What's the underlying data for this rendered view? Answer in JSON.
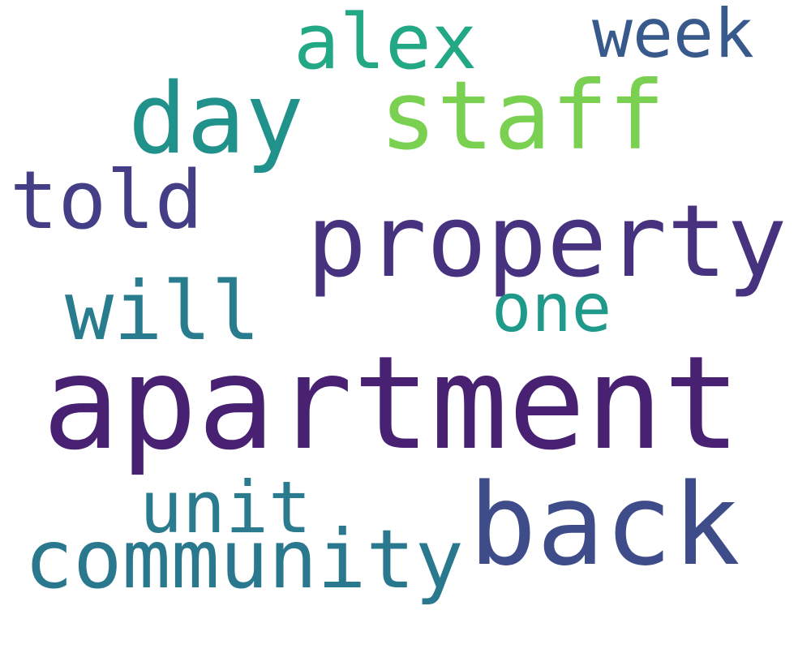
{
  "word_cloud": {
    "background": "#ffffff",
    "words": [
      {
        "text": "apartment",
        "color": "#482173"
      },
      {
        "text": "property",
        "color": "#46327e"
      },
      {
        "text": "back",
        "color": "#3e4c8a"
      },
      {
        "text": "staff",
        "color": "#7ad151"
      },
      {
        "text": "day",
        "color": "#21918c"
      },
      {
        "text": "community",
        "color": "#2a788e"
      },
      {
        "text": "alex",
        "color": "#22a884"
      },
      {
        "text": "will",
        "color": "#287c8e"
      },
      {
        "text": "told",
        "color": "#433e85"
      },
      {
        "text": "unit",
        "color": "#2a7b8e"
      },
      {
        "text": "week",
        "color": "#38598c"
      },
      {
        "text": "one",
        "color": "#1f9a8a"
      }
    ]
  }
}
